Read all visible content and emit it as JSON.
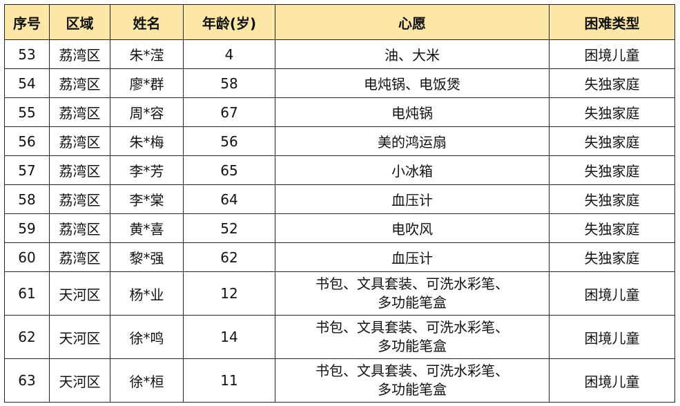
{
  "headers": [
    "序号",
    "区域",
    "姓名",
    "年龄(岁)",
    "心愿",
    "困难类型"
  ],
  "rows": [
    [
      "53",
      "荔湾区",
      "朱*滢",
      "4",
      "油、大米",
      "困境儿童"
    ],
    [
      "54",
      "荔湾区",
      "廖*群",
      "58",
      "电炖锅、电饭煲",
      "失独家庭"
    ],
    [
      "55",
      "荔湾区",
      "周*容",
      "67",
      "电炖锅",
      "失独家庭"
    ],
    [
      "56",
      "荔湾区",
      "朱*梅",
      "56",
      "美的鸿运扇",
      "失独家庭"
    ],
    [
      "57",
      "荔湾区",
      "李*芳",
      "65",
      "小冰箱",
      "失独家庭"
    ],
    [
      "58",
      "荔湾区",
      "李*棠",
      "64",
      "血压计",
      "失独家庭"
    ],
    [
      "59",
      "荔湾区",
      "黄*喜",
      "52",
      "电吹风",
      "失独家庭"
    ],
    [
      "60",
      "荔湾区",
      "黎*强",
      "62",
      "血压计",
      "失独家庭"
    ],
    [
      "61",
      "天河区",
      "杨*业",
      "12",
      "书包、文具套装、可洗水彩笔、\n多功能笔盒",
      "困境儿童"
    ],
    [
      "62",
      "天河区",
      "徐*鸣",
      "14",
      "书包、文具套装、可洗水彩笔、\n多功能笔盒",
      "困境儿童"
    ],
    [
      "63",
      "天河区",
      "徐*桓",
      "11",
      "书包、文具套装、可洗水彩笔、\n多功能笔盒",
      "困境儿童"
    ]
  ],
  "colors": {
    "header_bg": "#fce7a6",
    "border": "#222222"
  }
}
